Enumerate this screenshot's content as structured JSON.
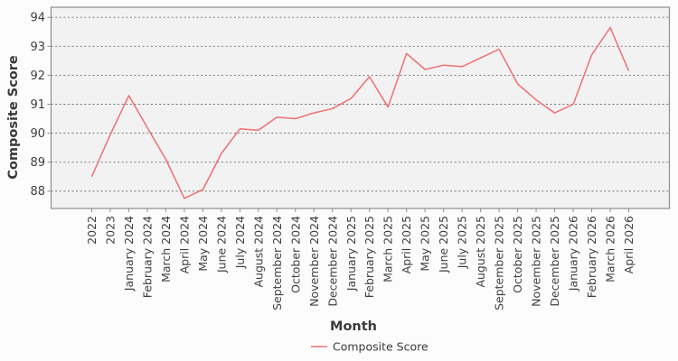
{
  "chart_data": {
    "type": "line",
    "title": "",
    "xlabel": "Month",
    "ylabel": "Composite Score",
    "categories": [
      "2022",
      "2023",
      "January 2024",
      "February 2024",
      "March 2024",
      "April 2024",
      "May 2024",
      "June 2024",
      "July 2024",
      "August 2024",
      "September 2024",
      "October 2024",
      "November 2024",
      "December 2024",
      "January 2025",
      "February 2025",
      "March 2025",
      "April 2025",
      "May 2025",
      "June 2025",
      "July 2025",
      "August 2025",
      "September 2025",
      "October 2025",
      "November 2025",
      "December 2025",
      "January 2026",
      "February 2026",
      "March 2026",
      "April 2026"
    ],
    "series": [
      {
        "name": "Composite Score",
        "values": [
          88.5,
          89.95,
          91.3,
          90.2,
          89.1,
          87.75,
          88.05,
          89.3,
          90.15,
          90.1,
          90.55,
          90.5,
          90.7,
          90.85,
          91.2,
          91.95,
          90.9,
          92.75,
          92.2,
          92.35,
          92.3,
          92.6,
          92.9,
          91.7,
          91.15,
          90.7,
          91.0,
          92.7,
          93.65,
          92.15
        ]
      }
    ],
    "yticks": [
      88,
      89,
      90,
      91,
      92,
      93,
      94
    ],
    "ylim": [
      87.4,
      94.35
    ],
    "grid": "horizontal-dashed",
    "legend": {
      "position": "bottom-center",
      "entries": [
        "Composite Score"
      ]
    },
    "colors": {
      "line": "#ef7070",
      "plot_bg": "#f2f2f2",
      "grid": "#6f6f6f",
      "frame": "#8f8f8f",
      "tick_text": "#3f3f3f",
      "label_text": "#3a3a3a",
      "page_bg": "#fcfcfc"
    }
  }
}
